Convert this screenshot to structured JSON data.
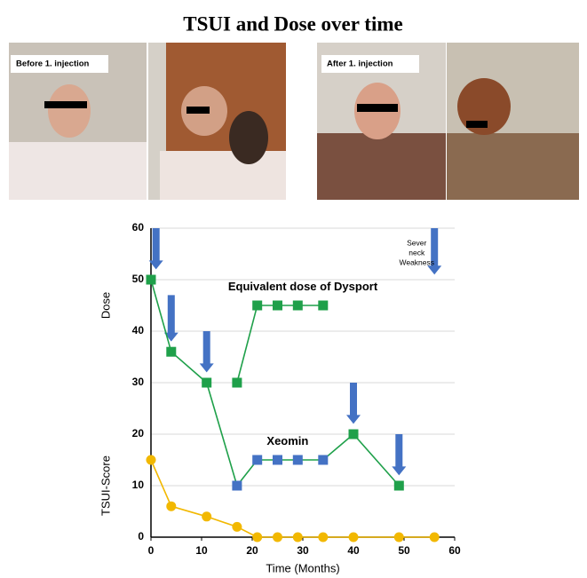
{
  "title": "TSUI and Dose over time",
  "photos": [
    {
      "label": "Before 1. injection"
    },
    {
      "label": "After 1. injection"
    }
  ],
  "chart_data": {
    "type": "line",
    "xlabel": "Time (Months)",
    "ylabel_top": "Dose",
    "ylabel_bottom": "TSUI-Score",
    "xlim": [
      0,
      60
    ],
    "ylim": [
      0,
      60
    ],
    "xticks": [
      0,
      10,
      20,
      30,
      40,
      50,
      60
    ],
    "yticks": [
      0,
      10,
      20,
      30,
      40,
      50,
      60
    ],
    "grid": true,
    "series": [
      {
        "color": "#1fa04a",
        "marker": "square",
        "x": [
          0,
          4,
          11,
          17,
          21,
          25,
          29,
          34,
          40,
          49
        ],
        "values": [
          50,
          36,
          30,
          10,
          15,
          15,
          15,
          15,
          20,
          10
        ],
        "marker_colors": [
          "#1fa04a",
          "#1fa04a",
          "#1fa04a",
          "#4472c4",
          "#4472c4",
          "#4472c4",
          "#4472c4",
          "#4472c4",
          "#1fa04a",
          "#1fa04a"
        ]
      },
      {
        "color": "#1fa04a",
        "marker": "square",
        "x": [
          17,
          21,
          25,
          29,
          34
        ],
        "values": [
          30,
          45,
          45,
          45,
          45
        ]
      },
      {
        "color": "#f2b800",
        "marker": "circle",
        "x": [
          0,
          4,
          11,
          17,
          21,
          25,
          29,
          34,
          40,
          49,
          56
        ],
        "values": [
          15,
          6,
          4,
          2,
          0,
          0,
          0,
          0,
          0,
          0,
          0
        ]
      }
    ],
    "arrows": {
      "color": "#4472c4",
      "x": [
        1,
        4,
        11,
        40,
        49,
        56
      ],
      "from": [
        60,
        47,
        40,
        30,
        20,
        60
      ],
      "to": [
        52,
        38,
        32,
        22,
        12,
        51
      ]
    },
    "annotations": [
      {
        "text": "Equivalent dose of Dysport",
        "x": 30,
        "y": 48.5
      },
      {
        "text": "Xeomin",
        "x": 27,
        "y": 18.5
      },
      {
        "lines": [
          "Sever",
          "neck",
          "Weakness"
        ],
        "x": 52.5,
        "y": 57
      }
    ]
  }
}
